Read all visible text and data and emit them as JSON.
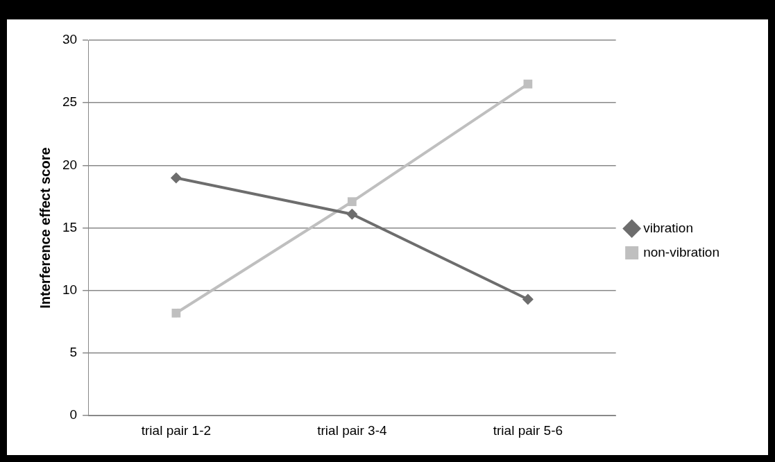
{
  "chart_data": {
    "type": "line",
    "ylabel": "Interference effect score",
    "categories": [
      "trial pair 1-2",
      "trial pair 3-4",
      "trial pair 5-6"
    ],
    "series": [
      {
        "name": "vibration",
        "color": "#6d6d6d",
        "values": [
          19,
          16.1,
          9.3
        ],
        "marker": "diamond"
      },
      {
        "name": "non-vibration",
        "color": "#bfbfbf",
        "values": [
          8.2,
          17.1,
          26.5
        ],
        "marker": "square"
      }
    ],
    "ylim": [
      0,
      30
    ],
    "yticks": [
      0,
      5,
      10,
      15,
      20,
      25,
      30
    ],
    "grid": "y",
    "legend": "right",
    "line_style": "solid"
  }
}
